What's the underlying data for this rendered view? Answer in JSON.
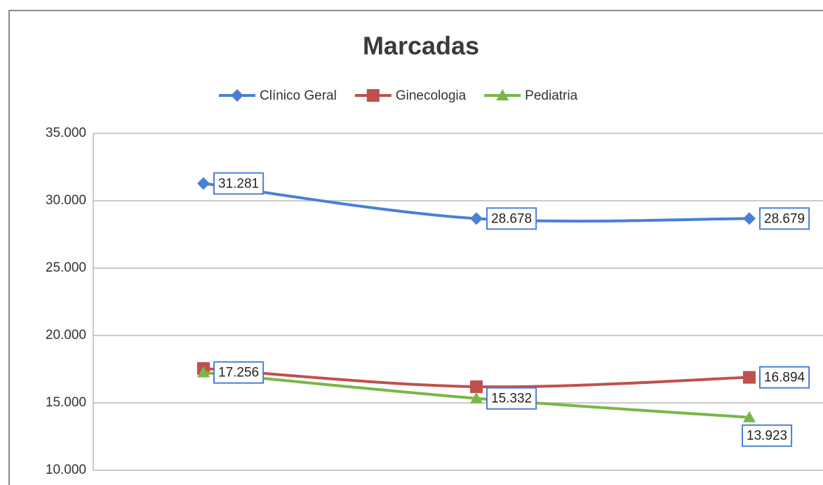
{
  "chart_data": {
    "type": "line",
    "title": "Marcadas",
    "categories": [
      null,
      null,
      null
    ],
    "series": [
      {
        "name": "Clínico Geral",
        "color": "#4a7fd6",
        "marker": "diamond",
        "values": [
          31281,
          28678,
          28679
        ],
        "value_labels": [
          "31.281",
          "28.678",
          "28.679"
        ]
      },
      {
        "name": "Ginecologia",
        "color": "#c0504d",
        "marker": "square",
        "values": [
          17550,
          16200,
          16894
        ],
        "value_labels": [
          null,
          null,
          "16.894"
        ]
      },
      {
        "name": "Pediatria",
        "color": "#7ab648",
        "marker": "triangle",
        "values": [
          17256,
          15332,
          13923
        ],
        "value_labels": [
          "17.256",
          "15.332",
          "13.923"
        ]
      }
    ],
    "ylim": [
      10000,
      35000
    ],
    "yticks": [
      {
        "value": 10000,
        "label": "10.000"
      },
      {
        "value": 15000,
        "label": "15.000"
      },
      {
        "value": 20000,
        "label": "20.000"
      },
      {
        "value": 25000,
        "label": "25.000"
      },
      {
        "value": 30000,
        "label": "30.000"
      },
      {
        "value": 35000,
        "label": "35.000"
      }
    ],
    "grid": true,
    "legend": "top"
  }
}
